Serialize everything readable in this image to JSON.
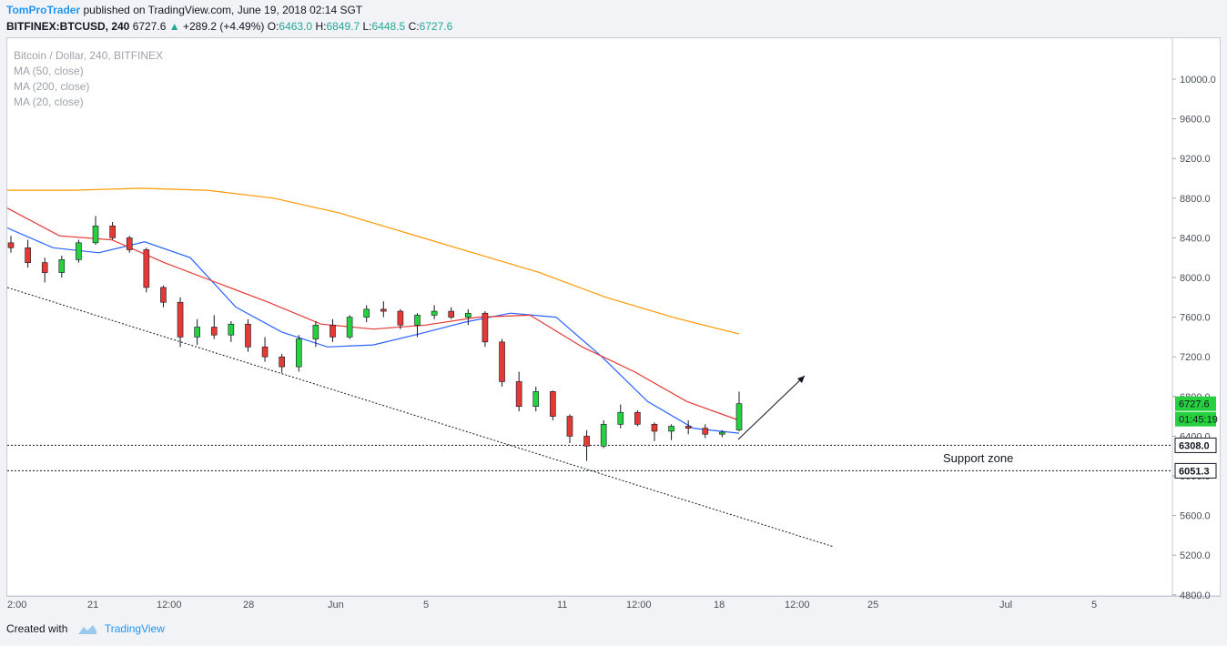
{
  "header": {
    "author": "TomProTrader",
    "published_text": "published on TradingView.com, June 19, 2018 02:14 SGT",
    "symbol_line": "BITFINEX:BTCUSD, 240",
    "last": "6727.6",
    "change": "+289.2 (+4.49%)",
    "o_label": "O:",
    "o_value": "6463.0",
    "h_label": "H:",
    "h_value": "6849.7",
    "l_label": "L:",
    "l_value": "6448.5",
    "c_label": "C:",
    "c_value": "6727.6"
  },
  "legend": {
    "title": "Bitcoin / Dollar, 240, BITFINEX",
    "ma1": "MA (50, close)",
    "ma2": "MA (200, close)",
    "ma3": "MA (20, close)"
  },
  "footer": {
    "created_with": "Created with",
    "brand": "TradingView"
  },
  "colors": {
    "up_candle": "#ffffff",
    "down_candle": "#e53935",
    "ma50": "#e53935",
    "ma200": "#ff9800",
    "ma20": "#2962ff",
    "price_label_bg": "#26d03f"
  },
  "chart_data": {
    "type": "line",
    "title": "Bitcoin / Dollar, 240, BITFINEX",
    "y_ticks": [
      "10000.0",
      "9600.0",
      "9200.0",
      "8800.0",
      "8400.0",
      "8000.0",
      "7600.0",
      "7200.0",
      "6800.0",
      "6400.0",
      "6000.0",
      "5600.0",
      "5200.0",
      "4800.0"
    ],
    "x_ticks": [
      "2:00",
      "21",
      "12:00",
      "28",
      "Jun",
      "5",
      "11",
      "12:00",
      "18",
      "12:00",
      "25",
      "Jul",
      "5"
    ],
    "ylim": [
      4800,
      10400
    ],
    "series": [
      {
        "name": "MA (20, close)",
        "values": [
          8500,
          8300,
          8250,
          8360,
          8200,
          7700,
          7450,
          7300,
          7320,
          7430,
          7550,
          7640,
          7600,
          7200,
          6750,
          6480,
          6430
        ]
      },
      {
        "name": "MA (50, close)",
        "values": [
          8700,
          8420,
          8380,
          8150,
          7950,
          7750,
          7530,
          7480,
          7520,
          7600,
          7620,
          7300,
          7050,
          6750,
          6560
        ]
      },
      {
        "name": "MA (200, close)",
        "values": [
          8880,
          8880,
          8900,
          8880,
          8800,
          8650,
          8450,
          8250,
          8050,
          7800,
          7600,
          7430
        ]
      }
    ],
    "candles_ohlc": [
      [
        8350,
        8420,
        8250,
        8300
      ],
      [
        8300,
        8380,
        8100,
        8150
      ],
      [
        8150,
        8200,
        7950,
        8050
      ],
      [
        8050,
        8220,
        8000,
        8180
      ],
      [
        8180,
        8380,
        8150,
        8350
      ],
      [
        8350,
        8620,
        8330,
        8520
      ],
      [
        8520,
        8560,
        8380,
        8400
      ],
      [
        8400,
        8420,
        8250,
        8280
      ],
      [
        8280,
        8300,
        7850,
        7900
      ],
      [
        7900,
        7920,
        7700,
        7750
      ],
      [
        7750,
        7800,
        7300,
        7400
      ],
      [
        7400,
        7580,
        7320,
        7500
      ],
      [
        7500,
        7620,
        7380,
        7420
      ],
      [
        7420,
        7560,
        7350,
        7530
      ],
      [
        7530,
        7580,
        7250,
        7300
      ],
      [
        7300,
        7400,
        7150,
        7200
      ],
      [
        7200,
        7230,
        7040,
        7100
      ],
      [
        7100,
        7420,
        7050,
        7380
      ],
      [
        7380,
        7560,
        7300,
        7520
      ],
      [
        7520,
        7580,
        7350,
        7400
      ],
      [
        7400,
        7620,
        7380,
        7600
      ],
      [
        7600,
        7720,
        7550,
        7680
      ],
      [
        7680,
        7760,
        7600,
        7660
      ],
      [
        7660,
        7680,
        7480,
        7520
      ],
      [
        7520,
        7640,
        7400,
        7620
      ],
      [
        7620,
        7720,
        7580,
        7660
      ],
      [
        7660,
        7700,
        7580,
        7600
      ],
      [
        7600,
        7680,
        7520,
        7640
      ],
      [
        7640,
        7660,
        7300,
        7350
      ],
      [
        7350,
        7380,
        6900,
        6950
      ],
      [
        6950,
        7050,
        6650,
        6700
      ],
      [
        6700,
        6900,
        6650,
        6850
      ],
      [
        6850,
        6860,
        6560,
        6600
      ],
      [
        6600,
        6620,
        6330,
        6400
      ],
      [
        6400,
        6460,
        6150,
        6300
      ],
      [
        6300,
        6560,
        6280,
        6520
      ],
      [
        6520,
        6720,
        6480,
        6640
      ],
      [
        6640,
        6660,
        6500,
        6520
      ],
      [
        6520,
        6540,
        6350,
        6450
      ],
      [
        6450,
        6520,
        6360,
        6500
      ],
      [
        6500,
        6560,
        6420,
        6480
      ],
      [
        6480,
        6520,
        6380,
        6420
      ],
      [
        6420,
        6460,
        6390,
        6440
      ],
      [
        6463,
        6849.7,
        6448.5,
        6727.6
      ]
    ],
    "support_levels": [
      6308.0,
      6051.3
    ],
    "price_labels": [
      "6727.6",
      "01:45:19",
      "6308.0",
      "6051.3"
    ],
    "annotations": [
      "Support zone"
    ]
  }
}
